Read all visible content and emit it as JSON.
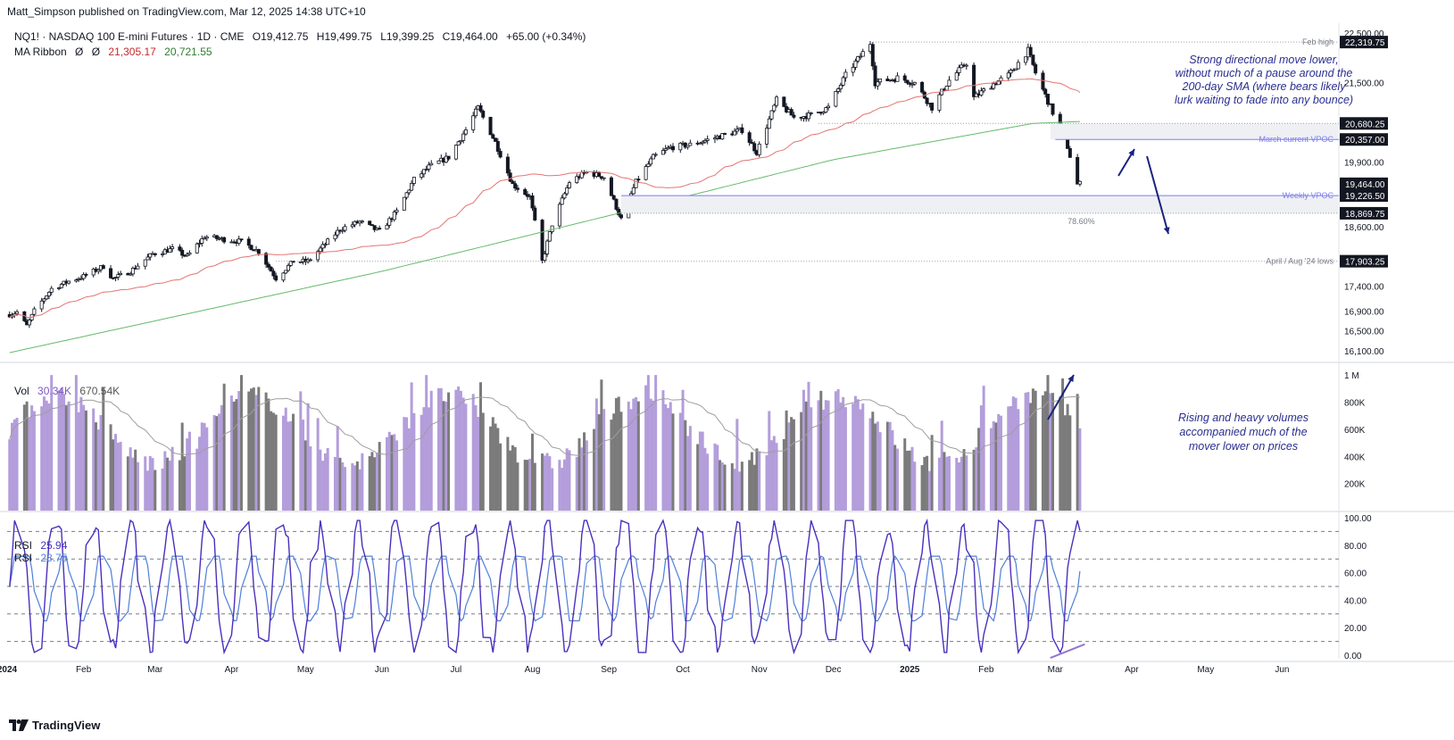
{
  "header": {
    "credit": "Matt_Simpson published on TradingView.com, Mar 12, 2025 14:38 UTC+10"
  },
  "legend": {
    "symbol": "NQ1! · NASDAQ 100 E-mini Futures · 1D · CME",
    "open": "O19,412.75",
    "high": "H19,499.75",
    "low": "L19,399.25",
    "close": "C19,464.00",
    "change": "+65.00 (+0.34%)",
    "ma_label": "MA Ribbon",
    "ma_sym1": "Ø",
    "ma_sym2": "Ø",
    "ma1": "21,305.17",
    "ma2": "20,721.55",
    "ma1_color": "#c62828",
    "ma2_color": "#2e7d32"
  },
  "vol_legend": {
    "label": "Vol",
    "v1": "30.34K",
    "v2": "670.54K"
  },
  "rsi_legend": {
    "label1": "RSI",
    "v1": "25.94",
    "label2": "RSI",
    "v2": "28.75"
  },
  "annotations": {
    "a1": "Strong directional move lower,",
    "a2": "without much of a pause around the",
    "a3": "200-day SMA (where bears likely",
    "a4": "lurk waiting to fade into any bounce)",
    "b1": "Rising and heavy volumes",
    "b2": "accompanied much of the",
    "b3": "mover lower on prices"
  },
  "brand": "TradingView",
  "colors": {
    "candle": "#131722",
    "ma50": "#e57373",
    "ma200": "#66bb6a",
    "vol_up": "#b39ddb",
    "vol_down": "#7b7b7b",
    "rsi_fast": "#4a2fbd",
    "rsi_slow": "#4f7fd8",
    "level_line": "#9aa0a6",
    "vpoc_line": "#7e7ef0",
    "annotation": "#2a2e8f"
  },
  "chart_data": [
    {
      "type": "candlestick",
      "title": "NQ1! · NASDAQ 100 E-mini Futures · 1D · CME",
      "x_ticks": [
        "2024",
        "Feb",
        "Mar",
        "Apr",
        "May",
        "Jun",
        "Jul",
        "Aug",
        "Sep",
        "Oct",
        "Nov",
        "Dec",
        "2025",
        "Feb",
        "Mar",
        "Apr",
        "May",
        "Jun"
      ],
      "y_ticks": [
        "22,500.00",
        "21,500.00",
        "20,680.25",
        "19,900.00",
        "19,464.00",
        "18,869.75",
        "18,600.00",
        "17,903.25",
        "17,400.00",
        "16,900.00",
        "16,500.00",
        "16,100.00"
      ],
      "ylim": [
        15900,
        22700
      ],
      "price_path": [
        {
          "d": "2024-01-02",
          "v": 16830
        },
        {
          "d": "2024-01-05",
          "v": 16880
        },
        {
          "d": "2024-01-09",
          "v": 16600
        },
        {
          "d": "2024-01-12",
          "v": 16900
        },
        {
          "d": "2024-01-19",
          "v": 17350
        },
        {
          "d": "2024-01-26",
          "v": 17500
        },
        {
          "d": "2024-02-01",
          "v": 17600
        },
        {
          "d": "2024-02-09",
          "v": 17800
        },
        {
          "d": "2024-02-13",
          "v": 17550
        },
        {
          "d": "2024-02-20",
          "v": 17700
        },
        {
          "d": "2024-02-29",
          "v": 18050
        },
        {
          "d": "2024-03-08",
          "v": 18150
        },
        {
          "d": "2024-03-14",
          "v": 18000
        },
        {
          "d": "2024-03-21",
          "v": 18400
        },
        {
          "d": "2024-03-28",
          "v": 18350
        },
        {
          "d": "2024-04-05",
          "v": 18300
        },
        {
          "d": "2024-04-12",
          "v": 18100
        },
        {
          "d": "2024-04-19",
          "v": 17560
        },
        {
          "d": "2024-04-26",
          "v": 17900
        },
        {
          "d": "2024-05-02",
          "v": 17900
        },
        {
          "d": "2024-05-08",
          "v": 18200
        },
        {
          "d": "2024-05-15",
          "v": 18550
        },
        {
          "d": "2024-05-23",
          "v": 18700
        },
        {
          "d": "2024-05-31",
          "v": 18500
        },
        {
          "d": "2024-06-07",
          "v": 18900
        },
        {
          "d": "2024-06-14",
          "v": 19550
        },
        {
          "d": "2024-06-20",
          "v": 19800
        },
        {
          "d": "2024-06-28",
          "v": 20000
        },
        {
          "d": "2024-07-05",
          "v": 20550
        },
        {
          "d": "2024-07-10",
          "v": 21000
        },
        {
          "d": "2024-07-17",
          "v": 20300
        },
        {
          "d": "2024-07-24",
          "v": 19450
        },
        {
          "d": "2024-07-31",
          "v": 19200
        },
        {
          "d": "2024-08-05",
          "v": 17900
        },
        {
          "d": "2024-08-09",
          "v": 18650
        },
        {
          "d": "2024-08-16",
          "v": 19500
        },
        {
          "d": "2024-08-23",
          "v": 19700
        },
        {
          "d": "2024-08-30",
          "v": 19600
        },
        {
          "d": "2024-09-06",
          "v": 18750
        },
        {
          "d": "2024-09-12",
          "v": 19500
        },
        {
          "d": "2024-09-19",
          "v": 20000
        },
        {
          "d": "2024-09-26",
          "v": 20200
        },
        {
          "d": "2024-10-04",
          "v": 20250
        },
        {
          "d": "2024-10-11",
          "v": 20350
        },
        {
          "d": "2024-10-18",
          "v": 20450
        },
        {
          "d": "2024-10-25",
          "v": 20550
        },
        {
          "d": "2024-10-31",
          "v": 20100
        },
        {
          "d": "2024-11-08",
          "v": 21150
        },
        {
          "d": "2024-11-15",
          "v": 20800
        },
        {
          "d": "2024-11-22",
          "v": 20850
        },
        {
          "d": "2024-11-29",
          "v": 21000
        },
        {
          "d": "2024-12-06",
          "v": 21650
        },
        {
          "d": "2024-12-16",
          "v": 22300
        },
        {
          "d": "2024-12-18",
          "v": 21500
        },
        {
          "d": "2024-12-27",
          "v": 21600
        },
        {
          "d": "2025-01-03",
          "v": 21500
        },
        {
          "d": "2025-01-10",
          "v": 21000
        },
        {
          "d": "2025-01-17",
          "v": 21550
        },
        {
          "d": "2025-01-24",
          "v": 21900
        },
        {
          "d": "2025-01-27",
          "v": 21200
        },
        {
          "d": "2025-02-03",
          "v": 21450
        },
        {
          "d": "2025-02-10",
          "v": 21650
        },
        {
          "d": "2025-02-18",
          "v": 22150
        },
        {
          "d": "2025-02-21",
          "v": 21700
        },
        {
          "d": "2025-02-28",
          "v": 20900
        },
        {
          "d": "2025-03-05",
          "v": 20400
        },
        {
          "d": "2025-03-10",
          "v": 19450
        },
        {
          "d": "2025-03-11",
          "v": 19464
        }
      ],
      "series": [
        {
          "name": "MA Ribbon (1)",
          "value": "21,305.17"
        },
        {
          "name": "MA Ribbon (2)",
          "value": "20,721.55"
        }
      ],
      "levels": [
        {
          "label": "Feb high",
          "value": "22,319.75"
        },
        {
          "label": "",
          "value": "20,680.25"
        },
        {
          "label": "March current VPOC",
          "value": "20,357.00"
        },
        {
          "label": "Weekly VPOC",
          "value": "19,226.50"
        },
        {
          "label": "78.60%",
          "value": "18,869.75"
        },
        {
          "label": "April / Aug '24 lows",
          "value": "17,903.25"
        }
      ],
      "last_price": "19,464.00"
    },
    {
      "type": "bar",
      "title": "Vol",
      "y_ticks": [
        "1 M",
        "800K",
        "600K",
        "400K",
        "200K"
      ],
      "ylim": [
        0,
        1080000
      ],
      "values_summary": {
        "last": "30.34K",
        "ma": "670.54K"
      }
    },
    {
      "type": "line",
      "title": "RSI",
      "y_ticks": [
        "100.00",
        "80.00",
        "60.00",
        "40.00",
        "20.00",
        "0.00"
      ],
      "ylim": [
        0,
        100
      ],
      "levels": [
        90,
        70,
        50,
        30,
        10
      ],
      "series": [
        {
          "name": "RSI",
          "last": "25.94"
        },
        {
          "name": "RSI",
          "last": "28.75"
        }
      ]
    }
  ]
}
